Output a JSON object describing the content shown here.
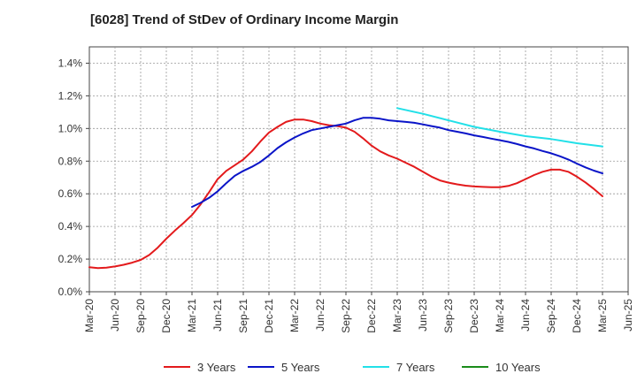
{
  "chart_data": {
    "type": "line",
    "title": "[6028]  Trend of StDev of Ordinary Income Margin",
    "xlabel": "",
    "ylabel": "",
    "ylim": [
      0,
      1.5
    ],
    "grid": true,
    "legend_position": "bottom",
    "x_ticks": [
      "Mar-20",
      "Jun-20",
      "Sep-20",
      "Dec-20",
      "Mar-21",
      "Jun-21",
      "Sep-21",
      "Dec-21",
      "Mar-22",
      "Jun-22",
      "Sep-22",
      "Dec-22",
      "Mar-23",
      "Jun-23",
      "Sep-23",
      "Dec-23",
      "Mar-24",
      "Jun-24",
      "Sep-24",
      "Dec-24",
      "Mar-25",
      "Jun-25"
    ],
    "y_ticks": [
      "0.0%",
      "0.2%",
      "0.4%",
      "0.6%",
      "0.8%",
      "1.0%",
      "1.2%",
      "1.4%"
    ],
    "series": [
      {
        "name": "3 Years",
        "color": "#e31a1c",
        "points": [
          [
            "Mar-20",
            0.15
          ],
          [
            "Apr-20",
            0.145
          ],
          [
            "May-20",
            0.148
          ],
          [
            "Jun-20",
            0.155
          ],
          [
            "Jul-20",
            0.165
          ],
          [
            "Aug-20",
            0.178
          ],
          [
            "Sep-20",
            0.195
          ],
          [
            "Oct-20",
            0.225
          ],
          [
            "Nov-20",
            0.27
          ],
          [
            "Dec-20",
            0.325
          ],
          [
            "Jan-21",
            0.375
          ],
          [
            "Feb-21",
            0.42
          ],
          [
            "Mar-21",
            0.47
          ],
          [
            "Apr-21",
            0.535
          ],
          [
            "May-21",
            0.61
          ],
          [
            "Jun-21",
            0.69
          ],
          [
            "Jul-21",
            0.74
          ],
          [
            "Aug-21",
            0.775
          ],
          [
            "Sep-21",
            0.81
          ],
          [
            "Oct-21",
            0.86
          ],
          [
            "Nov-21",
            0.92
          ],
          [
            "Dec-21",
            0.975
          ],
          [
            "Jan-22",
            1.01
          ],
          [
            "Feb-22",
            1.04
          ],
          [
            "Mar-22",
            1.055
          ],
          [
            "Apr-22",
            1.055
          ],
          [
            "May-22",
            1.045
          ],
          [
            "Jun-22",
            1.03
          ],
          [
            "Jul-22",
            1.02
          ],
          [
            "Aug-22",
            1.015
          ],
          [
            "Sep-22",
            1.005
          ],
          [
            "Oct-22",
            0.98
          ],
          [
            "Nov-22",
            0.94
          ],
          [
            "Dec-22",
            0.895
          ],
          [
            "Jan-23",
            0.86
          ],
          [
            "Feb-23",
            0.835
          ],
          [
            "Mar-23",
            0.815
          ],
          [
            "Apr-23",
            0.79
          ],
          [
            "May-23",
            0.765
          ],
          [
            "Jun-23",
            0.735
          ],
          [
            "Jul-23",
            0.705
          ],
          [
            "Aug-23",
            0.682
          ],
          [
            "Sep-23",
            0.668
          ],
          [
            "Oct-23",
            0.658
          ],
          [
            "Nov-23",
            0.65
          ],
          [
            "Dec-23",
            0.645
          ],
          [
            "Jan-24",
            0.642
          ],
          [
            "Feb-24",
            0.64
          ],
          [
            "Mar-24",
            0.64
          ],
          [
            "Apr-24",
            0.648
          ],
          [
            "May-24",
            0.665
          ],
          [
            "Jun-24",
            0.69
          ],
          [
            "Jul-24",
            0.715
          ],
          [
            "Aug-24",
            0.735
          ],
          [
            "Sep-24",
            0.748
          ],
          [
            "Oct-24",
            0.748
          ],
          [
            "Nov-24",
            0.735
          ],
          [
            "Dec-24",
            0.705
          ],
          [
            "Jan-25",
            0.67
          ],
          [
            "Feb-25",
            0.63
          ],
          [
            "Mar-25",
            0.585
          ]
        ]
      },
      {
        "name": "5 Years",
        "color": "#0a14c8",
        "points": [
          [
            "Mar-21",
            0.52
          ],
          [
            "Apr-21",
            0.545
          ],
          [
            "May-21",
            0.575
          ],
          [
            "Jun-21",
            0.615
          ],
          [
            "Jul-21",
            0.665
          ],
          [
            "Aug-21",
            0.71
          ],
          [
            "Sep-21",
            0.74
          ],
          [
            "Oct-21",
            0.765
          ],
          [
            "Nov-21",
            0.795
          ],
          [
            "Dec-21",
            0.835
          ],
          [
            "Jan-22",
            0.88
          ],
          [
            "Feb-22",
            0.915
          ],
          [
            "Mar-22",
            0.945
          ],
          [
            "Apr-22",
            0.97
          ],
          [
            "May-22",
            0.99
          ],
          [
            "Jun-22",
            1.0
          ],
          [
            "Jul-22",
            1.01
          ],
          [
            "Aug-22",
            1.02
          ],
          [
            "Sep-22",
            1.03
          ],
          [
            "Oct-22",
            1.05
          ],
          [
            "Nov-22",
            1.065
          ],
          [
            "Dec-22",
            1.065
          ],
          [
            "Jan-23",
            1.06
          ],
          [
            "Feb-23",
            1.05
          ],
          [
            "Mar-23",
            1.045
          ],
          [
            "Apr-23",
            1.04
          ],
          [
            "May-23",
            1.035
          ],
          [
            "Jun-23",
            1.025
          ],
          [
            "Jul-23",
            1.015
          ],
          [
            "Aug-23",
            1.005
          ],
          [
            "Sep-23",
            0.99
          ],
          [
            "Oct-23",
            0.98
          ],
          [
            "Nov-23",
            0.97
          ],
          [
            "Dec-23",
            0.958
          ],
          [
            "Jan-24",
            0.948
          ],
          [
            "Feb-24",
            0.938
          ],
          [
            "Mar-24",
            0.928
          ],
          [
            "Apr-24",
            0.918
          ],
          [
            "May-24",
            0.905
          ],
          [
            "Jun-24",
            0.89
          ],
          [
            "Jul-24",
            0.878
          ],
          [
            "Aug-24",
            0.862
          ],
          [
            "Sep-24",
            0.848
          ],
          [
            "Oct-24",
            0.83
          ],
          [
            "Nov-24",
            0.81
          ],
          [
            "Dec-24",
            0.785
          ],
          [
            "Jan-25",
            0.762
          ],
          [
            "Feb-25",
            0.742
          ],
          [
            "Mar-25",
            0.725
          ]
        ]
      },
      {
        "name": "7 Years",
        "color": "#22e0e8",
        "points": [
          [
            "Mar-23",
            1.125
          ],
          [
            "Jun-23",
            1.09
          ],
          [
            "Sep-23",
            1.05
          ],
          [
            "Dec-23",
            1.01
          ],
          [
            "Mar-24",
            0.98
          ],
          [
            "Jun-24",
            0.953
          ],
          [
            "Sep-24",
            0.935
          ],
          [
            "Dec-24",
            0.91
          ],
          [
            "Mar-25",
            0.89
          ]
        ]
      },
      {
        "name": "10 Years",
        "color": "#1a8c1a",
        "points": []
      }
    ]
  }
}
